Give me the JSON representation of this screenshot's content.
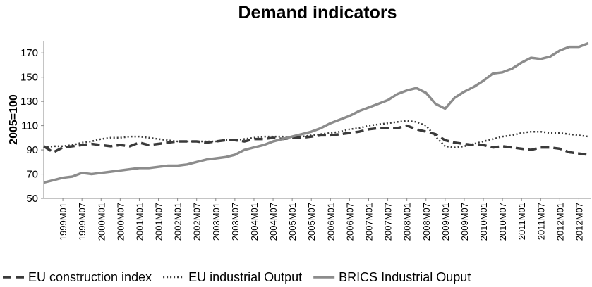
{
  "chart_data": {
    "type": "line",
    "title": "Demand indicators",
    "y_label": "2005=100",
    "categories": [
      null,
      null,
      "1999M01",
      null,
      "1999M07",
      null,
      "2000M01",
      null,
      "2000M07",
      null,
      "2001M01",
      null,
      "2001M07",
      null,
      "2002M01",
      null,
      "2002M07",
      null,
      "2003M01",
      null,
      "2003M07",
      null,
      "2004M01",
      null,
      "2004M07",
      null,
      "2005M01",
      null,
      "2005M07",
      null,
      "2006M01",
      null,
      "2006M07",
      null,
      "2007M01",
      null,
      "2007M07",
      null,
      "2008M01",
      null,
      "2008M07",
      null,
      "2009M01",
      null,
      "2009M07",
      null,
      "2010M01",
      null,
      "2010M07",
      null,
      "2011M01",
      null,
      "2011M07",
      null,
      "2012M01",
      null,
      "2012M07",
      null
    ],
    "series": [
      {
        "name": "EU construction index",
        "color": "#3a3a3a",
        "dash": "dashed",
        "values": [
          93,
          88,
          92,
          93,
          94,
          95,
          94,
          93,
          94,
          93,
          96,
          94,
          95,
          96,
          97,
          97,
          97,
          96,
          97,
          98,
          98,
          97,
          99,
          99,
          100,
          99,
          100,
          100,
          101,
          102,
          102,
          103,
          104,
          105,
          107,
          108,
          108,
          108,
          110,
          107,
          105,
          103,
          98,
          96,
          95,
          94,
          94,
          92,
          93,
          92,
          91,
          90,
          92,
          92,
          91,
          88,
          87,
          86
        ]
      },
      {
        "name": "EU industrial Output",
        "color": "#3a3a3a",
        "dash": "dotted",
        "values": [
          92,
          93,
          93,
          94,
          96,
          97,
          99,
          100,
          100,
          101,
          101,
          100,
          99,
          98,
          97,
          97,
          97,
          97,
          97,
          98,
          98,
          99,
          100,
          101,
          101,
          101,
          100,
          101,
          102,
          103,
          104,
          105,
          107,
          108,
          110,
          111,
          112,
          113,
          114,
          113,
          110,
          101,
          93,
          92,
          93,
          95,
          97,
          99,
          101,
          102,
          104,
          105,
          105,
          104,
          104,
          103,
          102,
          101
        ]
      },
      {
        "name": "BRICS Industrial Ouput",
        "color": "#8c8c8c",
        "dash": "solid",
        "values": [
          63,
          65,
          67,
          68,
          71,
          70,
          71,
          72,
          73,
          74,
          75,
          75,
          76,
          77,
          77,
          78,
          80,
          82,
          83,
          84,
          86,
          90,
          92,
          94,
          97,
          99,
          101,
          103,
          105,
          108,
          112,
          115,
          118,
          122,
          125,
          128,
          131,
          136,
          139,
          141,
          137,
          128,
          124,
          133,
          138,
          142,
          147,
          153,
          154,
          157,
          162,
          166,
          165,
          167,
          172,
          175,
          175,
          178
        ]
      }
    ],
    "ylim": [
      50,
      180
    ],
    "yticks": [
      50,
      70,
      90,
      110,
      130,
      150,
      170
    ],
    "grid": false,
    "legend": "bottom"
  }
}
